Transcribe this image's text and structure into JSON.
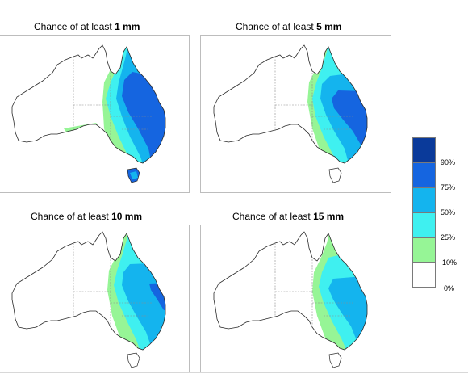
{
  "maps": [
    {
      "prefix": "Chance of at least ",
      "amount": "1 mm"
    },
    {
      "prefix": "Chance of at least ",
      "amount": "5 mm"
    },
    {
      "prefix": "Chance of at least ",
      "amount": "10 mm"
    },
    {
      "prefix": "Chance of at least ",
      "amount": "15 mm"
    }
  ],
  "legend": {
    "classes": [
      {
        "color": "#0a3a9a"
      },
      {
        "color": "#1565e0"
      },
      {
        "color": "#14b4ee"
      },
      {
        "color": "#3ff0f0"
      },
      {
        "color": "#96f596"
      },
      {
        "color": "#ffffff"
      }
    ],
    "labels": [
      "90%",
      "75%",
      "50%",
      "25%",
      "10%",
      "0%"
    ]
  },
  "colors": {
    "coast": "#2a2a2a",
    "border": "#8a8a8a",
    "frame": "#bdbdbd"
  }
}
